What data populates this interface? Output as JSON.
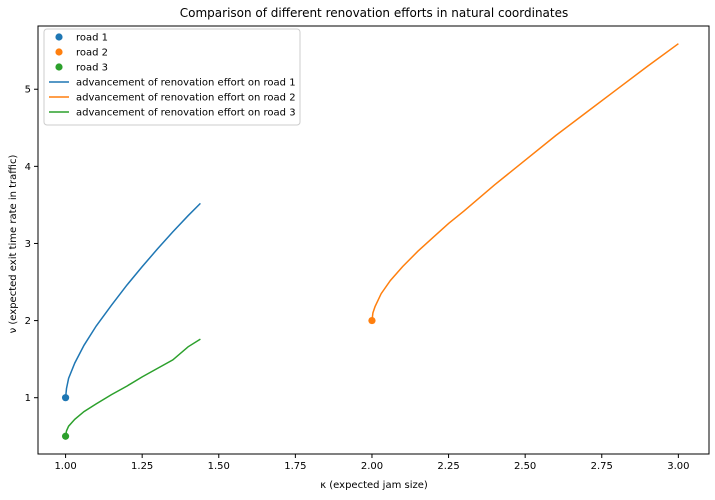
{
  "chart_data": {
    "type": "line",
    "title": "Comparison of different renovation efforts in natural coordinates",
    "xlabel": "κ (expected jam size)",
    "ylabel": "ν (expected exit time rate in traffic)",
    "xlim": [
      0.91,
      3.1
    ],
    "ylim": [
      0.27,
      5.82
    ],
    "xticks": [
      "1.00",
      "1.25",
      "1.50",
      "1.75",
      "2.00",
      "2.25",
      "2.50",
      "2.75",
      "3.00"
    ],
    "xtick_values": [
      1.0,
      1.25,
      1.5,
      1.75,
      2.0,
      2.25,
      2.5,
      2.75,
      3.0
    ],
    "yticks": [
      "1",
      "2",
      "3",
      "4",
      "5"
    ],
    "ytick_values": [
      1,
      2,
      3,
      4,
      5
    ],
    "grid": false,
    "legend_placement": "top-left",
    "points": [
      {
        "name": "road 1",
        "x": 1.0,
        "y": 1.0,
        "color": "#1f77b4"
      },
      {
        "name": "road 2",
        "x": 2.0,
        "y": 2.0,
        "color": "#ff7f0e"
      },
      {
        "name": "road 3",
        "x": 1.0,
        "y": 0.5,
        "color": "#2ca02c"
      }
    ],
    "series": [
      {
        "name": "advancement of renovation effort on road 1",
        "color": "#1f77b4",
        "x": [
          1.0,
          1.003,
          1.01,
          1.03,
          1.06,
          1.1,
          1.15,
          1.2,
          1.25,
          1.3,
          1.35,
          1.4,
          1.44
        ],
        "y": [
          1.0,
          1.12,
          1.25,
          1.45,
          1.68,
          1.93,
          2.2,
          2.46,
          2.7,
          2.93,
          3.15,
          3.36,
          3.52
        ]
      },
      {
        "name": "advancement of renovation effort on road 2",
        "color": "#ff7f0e",
        "x": [
          2.0,
          2.003,
          2.01,
          2.03,
          2.06,
          2.1,
          2.15,
          2.2,
          2.25,
          2.3,
          2.4,
          2.5,
          2.6,
          2.7,
          2.8,
          2.9,
          3.0
        ],
        "y": [
          2.0,
          2.1,
          2.18,
          2.35,
          2.52,
          2.7,
          2.9,
          3.08,
          3.26,
          3.42,
          3.76,
          4.08,
          4.4,
          4.7,
          5.0,
          5.3,
          5.59
        ]
      },
      {
        "name": "advancement of renovation effort on road 3",
        "color": "#2ca02c",
        "x": [
          1.0,
          1.003,
          1.01,
          1.03,
          1.06,
          1.1,
          1.15,
          1.2,
          1.25,
          1.3,
          1.35,
          1.4,
          1.44
        ],
        "y": [
          0.5,
          0.57,
          0.63,
          0.72,
          0.82,
          0.92,
          1.04,
          1.15,
          1.27,
          1.38,
          1.49,
          1.66,
          1.76
        ]
      }
    ]
  }
}
